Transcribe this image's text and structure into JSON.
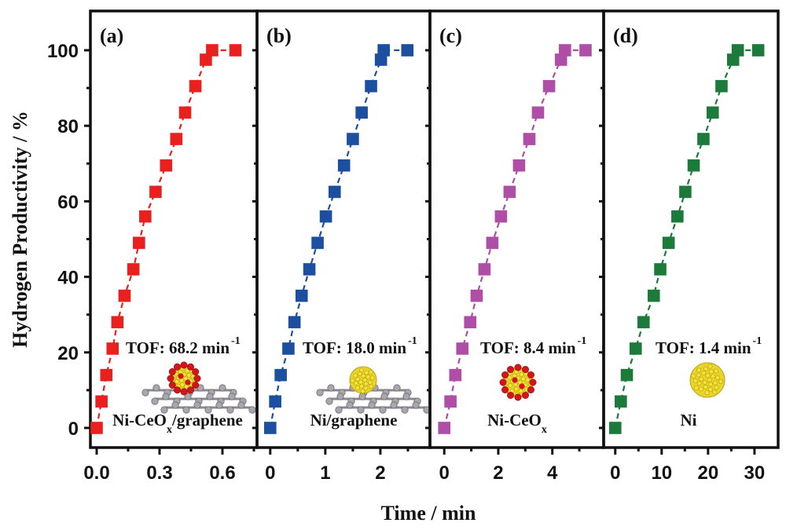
{
  "chart_data": {
    "type": "scatter",
    "ylabel": "Hydrogen Productivity / %",
    "xlabel": "Time / min",
    "ylim": [
      0,
      100
    ],
    "yticks": [
      "0",
      "20",
      "40",
      "60",
      "80",
      "100"
    ],
    "ytick_values": [
      0,
      20,
      40,
      60,
      80,
      100
    ],
    "grid": false,
    "panels": [
      {
        "label": "(a)",
        "material": "Ni-CeO",
        "material_sub": "x",
        "material_suffix": "/graphene",
        "tof_text": "TOF: 68.2 min",
        "tof_sup": "-1",
        "tof_value": 68.2,
        "illustration": "ni-ceox-on-graphene",
        "color": "#e8201e",
        "xlim": [
          -0.03,
          0.765
        ],
        "xticks": [
          "0.0",
          "0.3",
          "0.6"
        ],
        "xtick_values": [
          0,
          0.3,
          0.6
        ],
        "xminor": [
          0.15,
          0.45,
          0.75
        ],
        "x": [
          0,
          0.023,
          0.046,
          0.076,
          0.099,
          0.133,
          0.175,
          0.202,
          0.232,
          0.281,
          0.331,
          0.38,
          0.422,
          0.471,
          0.521,
          0.551,
          0.662
        ],
        "y": [
          0,
          7,
          14,
          21,
          28,
          35,
          42,
          49,
          56,
          62.5,
          69.5,
          76.5,
          83.5,
          90.5,
          97.5,
          100,
          100
        ]
      },
      {
        "label": "(b)",
        "material": "Ni/graphene",
        "material_sub": "",
        "material_suffix": "",
        "tof_text": "TOF: 18.0 min",
        "tof_sup": "-1",
        "tof_value": 18.0,
        "illustration": "ni-on-graphene",
        "color": "#1d4fa0",
        "xlim": [
          -0.24,
          2.9
        ],
        "xticks": [
          "0",
          "1",
          "2"
        ],
        "xtick_values": [
          0,
          1,
          2
        ],
        "xminor": [
          0.5,
          1.5,
          2.5
        ],
        "x": [
          0,
          0.09,
          0.19,
          0.33,
          0.44,
          0.57,
          0.71,
          0.86,
          1.01,
          1.17,
          1.34,
          1.5,
          1.66,
          1.83,
          2.01,
          2.06,
          2.49
        ],
        "y": [
          0,
          7,
          14,
          21,
          28,
          35,
          42,
          49,
          56,
          62.5,
          69.5,
          76.5,
          83.5,
          90.5,
          97.5,
          100,
          100
        ]
      },
      {
        "label": "(c)",
        "material": "Ni-CeO",
        "material_sub": "x",
        "material_suffix": "",
        "tof_text": "TOF: 8.4 min",
        "tof_sup": "-1",
        "tof_value": 8.4,
        "illustration": "ni-ceox-particle",
        "color": "#ae4ea6",
        "xlim": [
          -0.53,
          5.9
        ],
        "xticks": [
          "0",
          "2",
          "4"
        ],
        "xtick_values": [
          0,
          2,
          4
        ],
        "xminor": [
          1,
          3,
          5
        ],
        "x": [
          0,
          0.23,
          0.41,
          0.67,
          0.96,
          1.2,
          1.49,
          1.78,
          2.1,
          2.42,
          2.77,
          3.15,
          3.47,
          3.88,
          4.32,
          4.47,
          5.23
        ],
        "y": [
          0,
          7,
          14,
          21,
          28,
          35,
          42,
          49,
          56,
          62.5,
          69.5,
          76.5,
          83.5,
          90.5,
          97.5,
          100,
          100
        ]
      },
      {
        "label": "(d)",
        "material": "Ni",
        "material_sub": "",
        "material_suffix": "",
        "tof_text": "TOF: 1.4 min",
        "tof_sup": "-1",
        "tof_value": 1.4,
        "illustration": "ni-particle",
        "color": "#1c7a3a",
        "xlim": [
          -2.5,
          35.1
        ],
        "xticks": [
          "0",
          "10",
          "20",
          "30"
        ],
        "xtick_values": [
          0,
          10,
          20,
          30
        ],
        "xminor": [
          5,
          15,
          25,
          35
        ],
        "x": [
          0,
          1.2,
          2.5,
          4.4,
          6.1,
          8.3,
          9.7,
          11.5,
          13.4,
          15.1,
          16.9,
          19.0,
          21.0,
          22.9,
          25.4,
          26.4,
          30.8
        ],
        "y": [
          0,
          7,
          14,
          21,
          28,
          35,
          42,
          49,
          56,
          62.5,
          69.5,
          76.5,
          83.5,
          90.5,
          97.5,
          100,
          100
        ]
      }
    ]
  }
}
